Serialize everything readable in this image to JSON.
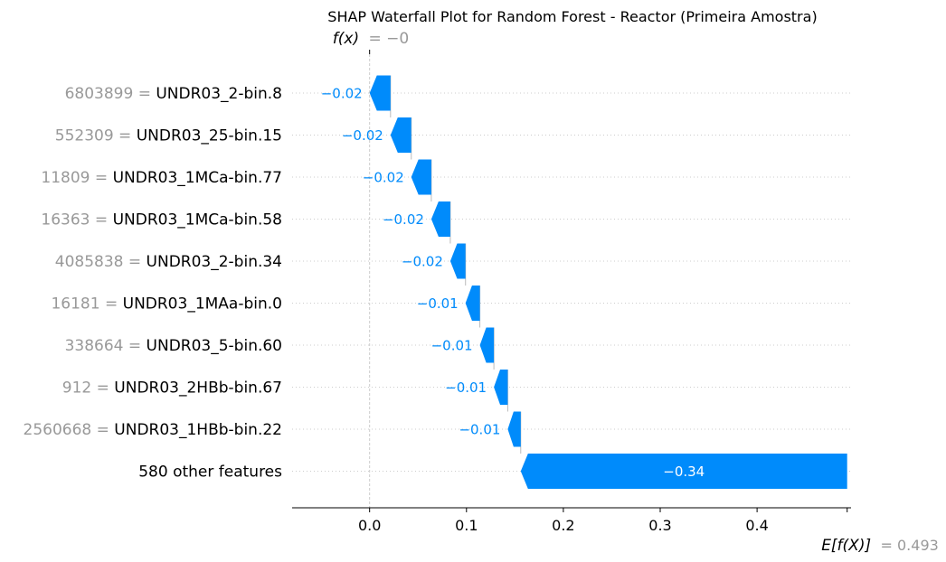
{
  "chart_data": {
    "type": "waterfall",
    "title": "SHAP Waterfall Plot for Random Forest - Reactor (Primeira Amostra)",
    "fx_label": "f(x)",
    "fx_value": "= −0",
    "base_label": "E[f(X)]",
    "base_value_text": "= 0.493",
    "base_value": 0.493,
    "features": [
      {
        "value": "6803899",
        "name": "UNDR03_2-bin.8",
        "shap": -0.0216,
        "label": "−0.02"
      },
      {
        "value": "552309",
        "name": "UNDR03_25-bin.15",
        "shap": -0.0214,
        "label": "−0.02"
      },
      {
        "value": "11809",
        "name": "UNDR03_1MCa-bin.77",
        "shap": -0.0207,
        "label": "−0.02"
      },
      {
        "value": "16363",
        "name": "UNDR03_1MCa-bin.58",
        "shap": -0.0196,
        "label": "−0.02"
      },
      {
        "value": "4085838",
        "name": "UNDR03_2-bin.34",
        "shap": -0.0157,
        "label": "−0.02"
      },
      {
        "value": "16181",
        "name": "UNDR03_1MAa-bin.0",
        "shap": -0.0148,
        "label": "−0.01"
      },
      {
        "value": "338664",
        "name": "UNDR03_5-bin.60",
        "shap": -0.0145,
        "label": "−0.01"
      },
      {
        "value": "912",
        "name": "UNDR03_2HBb-bin.67",
        "shap": -0.0143,
        "label": "−0.01"
      },
      {
        "value": "2560668",
        "name": "UNDR03_1HBb-bin.22",
        "shap": -0.0134,
        "label": "−0.01"
      },
      {
        "value": "",
        "name": "580 other features",
        "shap": -0.337,
        "label": "−0.34"
      }
    ],
    "xlim": [
      -0.08,
      0.497
    ],
    "xticks": [
      0.0,
      0.1,
      0.2,
      0.3,
      0.4
    ],
    "xtick_labels": [
      "0.0",
      "0.1",
      "0.2",
      "0.3",
      "0.4"
    ],
    "colors": {
      "negative": "#008bfb",
      "grid": "#cccccc",
      "value_text": "#999999",
      "axis": "#000000"
    }
  }
}
